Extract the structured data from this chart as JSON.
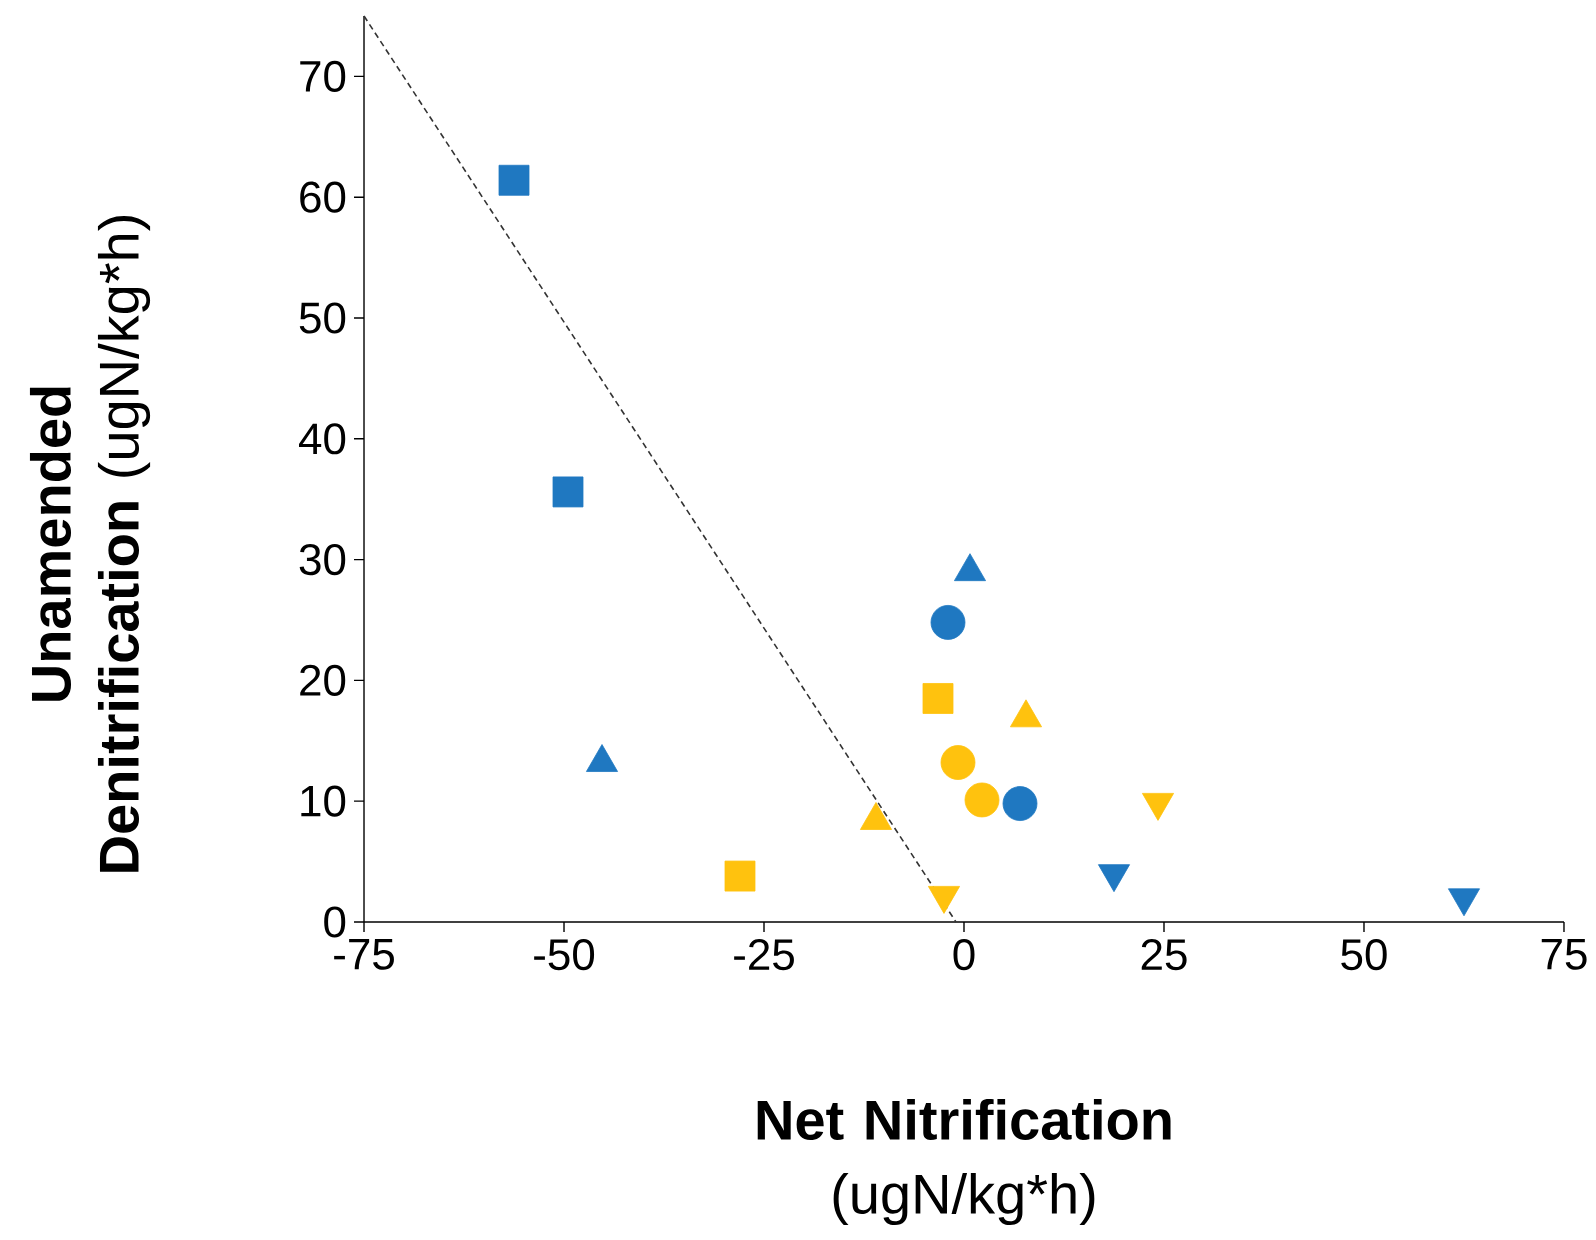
{
  "chart_data": {
    "type": "scatter",
    "xlabel": "**Net Nitrification** (ugN/kg*h)",
    "ylabel": "**Unamended Denitrification** (ugN/kg*h)",
    "xlim": [
      -75,
      75
    ],
    "ylim": [
      0,
      75
    ],
    "xticks": [
      -75,
      -50,
      -25,
      0,
      25,
      50,
      75
    ],
    "yticks": [
      0,
      10,
      20,
      30,
      40,
      50,
      60,
      70
    ],
    "grid": false,
    "series": [
      {
        "color": "#1f78c1",
        "marker": "square",
        "x": [
          -56.25,
          -49.5
        ],
        "values": [
          61.4,
          35.6
        ]
      },
      {
        "color": "#1f78c1",
        "marker": "triangle",
        "x": [
          -45.25,
          0.75
        ],
        "values": [
          13.2,
          29
        ]
      },
      {
        "color": "#1f78c1",
        "marker": "circle",
        "x": [
          -2,
          7
        ],
        "values": [
          24.8,
          9.8
        ]
      },
      {
        "color": "#1f78c1",
        "marker": "triangle_down",
        "x": [
          18.75,
          62.5
        ],
        "values": [
          4,
          2
        ]
      },
      {
        "color": "#ffc20e",
        "marker": "square",
        "x": [
          -28,
          -3.25
        ],
        "values": [
          3.8,
          18.5
        ]
      },
      {
        "color": "#ffc20e",
        "marker": "triangle",
        "x": [
          -11,
          7.75
        ],
        "values": [
          8.4,
          16.9
        ]
      },
      {
        "color": "#ffc20e",
        "marker": "circle",
        "x": [
          -0.75,
          2.25
        ],
        "values": [
          13.2,
          10.1
        ]
      },
      {
        "color": "#ffc20e",
        "marker": "triangle_down",
        "x": [
          -2.5,
          24.25
        ],
        "values": [
          2.2,
          9.9
        ]
      },
      {
        "type": "line",
        "color": "#333333",
        "line_style": "dashed",
        "marker": "none",
        "x": [
          -75,
          -1
        ],
        "values": [
          75,
          0
        ]
      }
    ]
  }
}
